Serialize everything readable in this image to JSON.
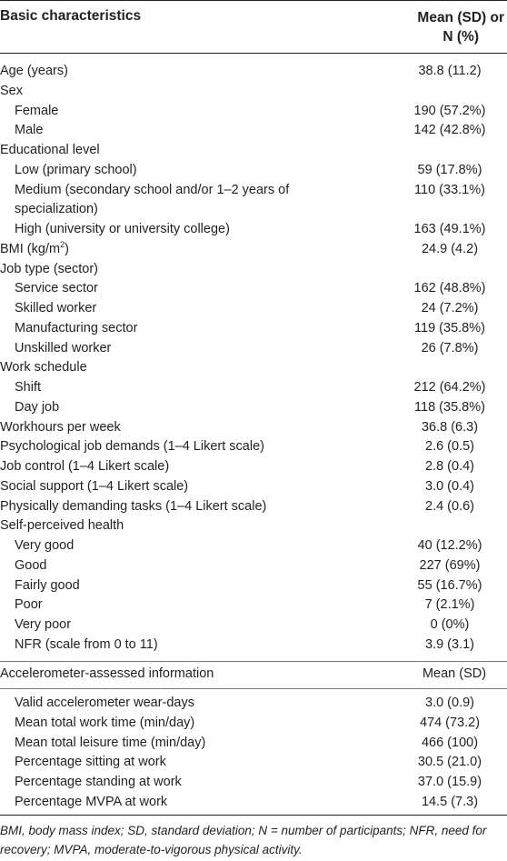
{
  "header": {
    "col1": "Basic characteristics",
    "col2_line1": "Mean (SD) or",
    "col2_line2": "N (%)"
  },
  "rows": [
    {
      "label": "Age (years)",
      "value": "38.8 (11.2)"
    },
    {
      "label": "Sex",
      "value": ""
    },
    {
      "label": "Female",
      "value": "190 (57.2%)"
    },
    {
      "label": "Male",
      "value": "142 (42.8%)"
    },
    {
      "label": "Educational level",
      "value": ""
    },
    {
      "label": "Low (primary school)",
      "value": "59 (17.8%)"
    },
    {
      "label": "Medium (secondary school and/or 1–2 years of",
      "value": "110 (33.1%)"
    },
    {
      "label": "specialization)",
      "value": ""
    },
    {
      "label": "High (university or university college)",
      "value": "163 (49.1%)"
    },
    {
      "label": "BMI (kg/m",
      "sup": "2",
      "label_end": ")",
      "value": "24.9 (4.2)"
    },
    {
      "label": "Job type (sector)",
      "value": ""
    },
    {
      "label": "Service sector",
      "value": "162 (48.8%)"
    },
    {
      "label": "Skilled worker",
      "value": "24 (7.2%)"
    },
    {
      "label": "Manufacturing sector",
      "value": "119 (35.8%)"
    },
    {
      "label": "Unskilled worker",
      "value": "26 (7.8%)"
    },
    {
      "label": "Work schedule",
      "value": ""
    },
    {
      "label": "Shift",
      "value": "212 (64.2%)"
    },
    {
      "label": "Day job",
      "value": "118 (35.8%)"
    },
    {
      "label": "Workhours per week",
      "value": "36.8 (6.3)"
    },
    {
      "label": "Psychological job demands (1–4 Likert scale)",
      "value": "2.6 (0.5)"
    },
    {
      "label": "Job control (1–4 Likert scale)",
      "value": "2.8 (0.4)"
    },
    {
      "label": "Social support (1–4 Likert scale)",
      "value": "3.0 (0.4)"
    },
    {
      "label": "Physically demanding tasks (1–4 Likert scale)",
      "value": "2.4 (0.6)"
    },
    {
      "label": "Self-perceived health",
      "value": ""
    },
    {
      "label": "Very good",
      "value": "40 (12.2%)"
    },
    {
      "label": "Good",
      "value": "227 (69%)"
    },
    {
      "label": "Fairly good",
      "value": "55 (16.7%)"
    },
    {
      "label": "Poor",
      "value": "7 (2.1%)"
    },
    {
      "label": "Very poor",
      "value": "0 (0%)"
    },
    {
      "label": "NFR (scale from 0 to 11)",
      "value": "3.9 (3.1)"
    }
  ],
  "section2": {
    "header_label": "Accelerometer-assessed information",
    "header_value": "Mean (SD)",
    "rows": [
      {
        "label": "Valid accelerometer wear-days",
        "value": "3.0 (0.9)"
      },
      {
        "label": "Mean total work time (min/day)",
        "value": "474 (73.2)"
      },
      {
        "label": "Mean total leisure time (min/day)",
        "value": "466 (100)"
      },
      {
        "label": "Percentage sitting at work",
        "value": "30.5 (21.0)"
      },
      {
        "label": "Percentage standing at work",
        "value": "37.0 (15.9)"
      },
      {
        "label": "Percentage MVPA at work",
        "value": "14.5 (7.3)"
      }
    ]
  },
  "footnote": "BMI, body mass index; SD, standard deviation; N = number of participants; NFR, need for recovery; MVPA, moderate-to-vigorous physical activity."
}
